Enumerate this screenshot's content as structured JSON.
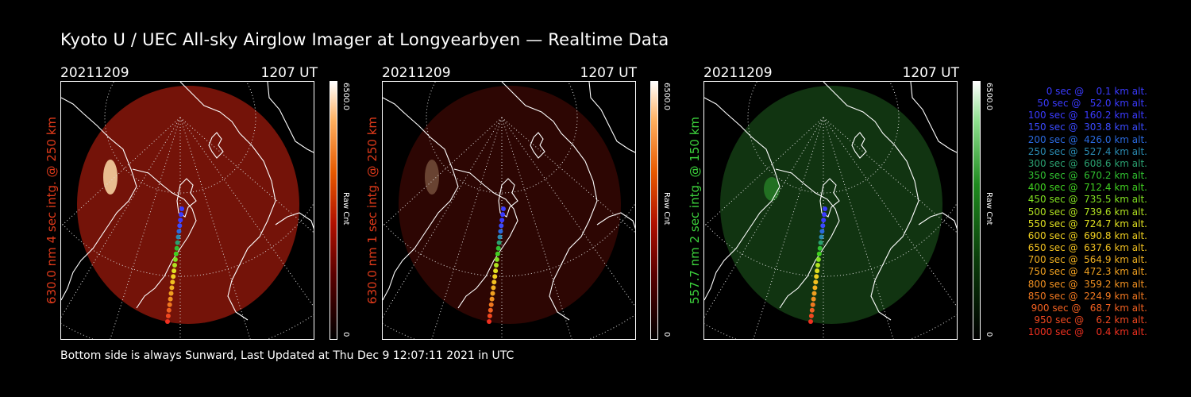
{
  "title": "Kyoto U / UEC All-sky Airglow Imager at Longyearbyen — Realtime Data",
  "footer": "Bottom side is always Sunward, Last Updated at Thu Dec  9 12:07:11 2021 in UTC",
  "panels": [
    {
      "date": "20211209",
      "time": "1207 UT",
      "ylabel": "630.0 nm 4 sec intg. @ 250 km",
      "label_color": "#e03a1a",
      "cbar_max": "6500.0",
      "cbar_unit": "Raw Cnt",
      "cbar_min": "0",
      "glow": "#9b1a0c",
      "glow_opacity": 0.75,
      "cbar_gradient": "linear-gradient(to top,#000 0%,#5a0000 25%,#b01000 45%,#e85a00 65%,#ffb060 85%,#ffffff 100%)"
    },
    {
      "date": "20211209",
      "time": "1207 UT",
      "ylabel": "630.0 nm 1 sec intg. @ 250 km",
      "label_color": "#e03a1a",
      "cbar_max": "6500.0",
      "cbar_unit": "Raw Cnt",
      "cbar_min": "0",
      "glow": "#5a0c06",
      "glow_opacity": 0.5,
      "cbar_gradient": "linear-gradient(to top,#000 0%,#5a0000 25%,#b01000 45%,#e85a00 65%,#ffb060 85%,#ffffff 100%)"
    },
    {
      "date": "20211209",
      "time": "1207 UT",
      "ylabel": "557.7 nm 2 sec intg. @ 150 km",
      "label_color": "#3cd23c",
      "cbar_max": "6500.0",
      "cbar_unit": "Raw Cnt",
      "cbar_min": "0",
      "glow": "#184a18",
      "glow_opacity": 0.7,
      "cbar_gradient": "linear-gradient(to top,#000 0%,#0a3a0a 30%,#1e8a1e 60%,#8fe08f 85%,#ffffff 100%)"
    }
  ],
  "legend": [
    {
      "text": "0 sec @    0.1 km alt.",
      "color": "#3a3aff"
    },
    {
      "text": "50 sec @   52.0 km alt.",
      "color": "#3a3aff"
    },
    {
      "text": "100 sec @  160.2 km alt.",
      "color": "#3a3aff"
    },
    {
      "text": "150 sec @  303.8 km alt.",
      "color": "#3a4aff"
    },
    {
      "text": "200 sec @  426.0 km alt.",
      "color": "#2a6ae0"
    },
    {
      "text": "250 sec @  527.4 km alt.",
      "color": "#2a8ab0"
    },
    {
      "text": "300 sec @  608.6 km alt.",
      "color": "#2aa070"
    },
    {
      "text": "350 sec @  670.2 km alt.",
      "color": "#30c030"
    },
    {
      "text": "400 sec @  712.4 km alt.",
      "color": "#40d020"
    },
    {
      "text": "450 sec @  735.5 km alt.",
      "color": "#80e020"
    },
    {
      "text": "500 sec @  739.6 km alt.",
      "color": "#b0e020"
    },
    {
      "text": "550 sec @  724.7 km alt.",
      "color": "#e0e020"
    },
    {
      "text": "600 sec @  690.8 km alt.",
      "color": "#f0d020"
    },
    {
      "text": "650 sec @  637.6 km alt.",
      "color": "#f0c020"
    },
    {
      "text": "700 sec @  564.9 km alt.",
      "color": "#f0b020"
    },
    {
      "text": "750 sec @  472.3 km alt.",
      "color": "#f0a020"
    },
    {
      "text": "800 sec @  359.2 km alt.",
      "color": "#f09020"
    },
    {
      "text": "850 sec @  224.9 km alt.",
      "color": "#f07820"
    },
    {
      "text": "900 sec @   68.7 km alt.",
      "color": "#f06020"
    },
    {
      "text": "950 sec @    6.2 km alt.",
      "color": "#f04820"
    },
    {
      "text": "1000 sec @    0.4 km alt.",
      "color": "#f03020"
    }
  ]
}
